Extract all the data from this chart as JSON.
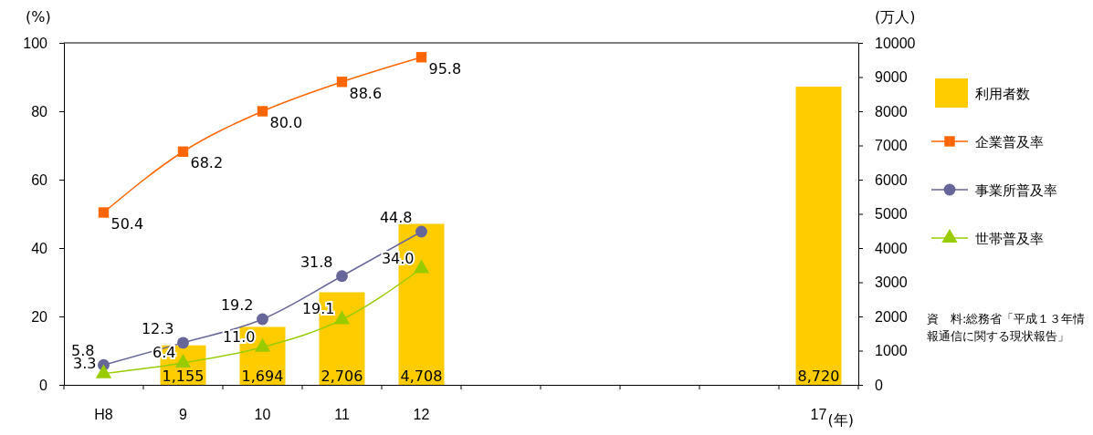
{
  "chart_data": {
    "type": "bar",
    "categories": [
      "H8",
      "9",
      "10",
      "11",
      "12",
      null,
      null,
      null,
      null,
      "17"
    ],
    "xlabel": "(年)",
    "ylabel": "(%)",
    "y2label": "(万人)",
    "ylim": [
      0,
      100
    ],
    "yticks": [
      0,
      20,
      40,
      60,
      80,
      100
    ],
    "y2lim": [
      0,
      10000
    ],
    "y2ticks": [
      0,
      1000,
      2000,
      3000,
      4000,
      5000,
      6000,
      7000,
      8000,
      9000,
      10000
    ],
    "grid": false,
    "legend": "right",
    "series": [
      {
        "name": "利用者数",
        "axis": "y2",
        "color": "#ffcc00",
        "values": [
          null,
          1155,
          1694,
          2706,
          4708,
          null,
          null,
          null,
          null,
          8720
        ],
        "value_labels": [
          null,
          "1,155",
          "1,694",
          "2,706",
          "4,708",
          null,
          null,
          null,
          null,
          "8,720"
        ]
      },
      {
        "name": "企業普及率",
        "type": "line",
        "color": "#ff6600",
        "marker": "square",
        "values": [
          50.4,
          68.2,
          80.0,
          88.6,
          95.8,
          null,
          null,
          null,
          null,
          null
        ],
        "value_labels": [
          "50.4",
          "68.2",
          "80.0",
          "88.6",
          "95.8",
          null,
          null,
          null,
          null,
          null
        ]
      },
      {
        "name": "事業所普及率",
        "type": "line",
        "color": "#666699",
        "marker": "circle",
        "values": [
          5.8,
          12.3,
          19.2,
          31.8,
          44.8,
          null,
          null,
          null,
          null,
          null
        ],
        "value_labels": [
          "5.8",
          "12.3",
          "19.2",
          "31.8",
          "44.8",
          null,
          null,
          null,
          null,
          null
        ]
      },
      {
        "name": "世帯普及率",
        "type": "line",
        "color": "#99cc00",
        "marker": "triangle",
        "values": [
          3.3,
          6.4,
          11.0,
          19.1,
          34.0,
          null,
          null,
          null,
          null,
          null
        ],
        "value_labels": [
          "3.3",
          "6.4",
          "11.0",
          "19.1",
          "34.0",
          null,
          null,
          null,
          null,
          null
        ]
      }
    ],
    "annotations": [
      "資　料:総務省「平成１３年情報通信に関する現状報告」"
    ]
  }
}
